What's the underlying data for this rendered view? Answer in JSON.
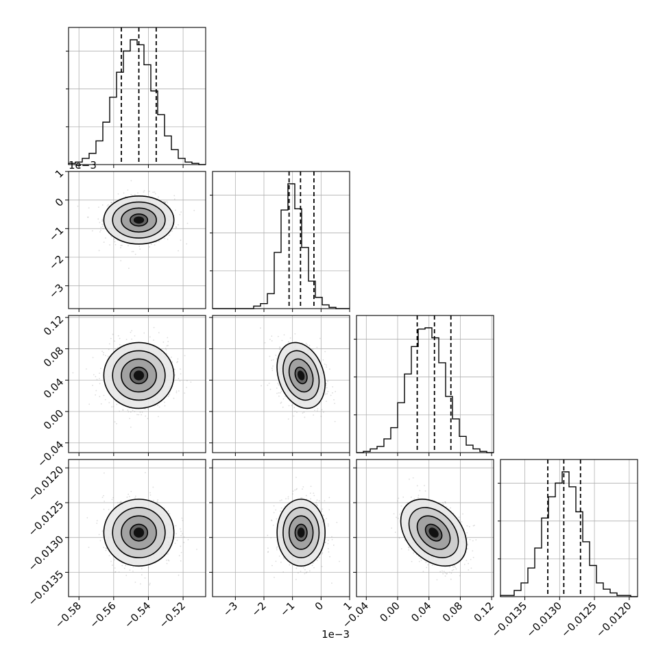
{
  "chart_data": {
    "type": "corner",
    "grid": true,
    "params": [
      {
        "name": "",
        "range": [
          -0.586,
          -0.507
        ],
        "ticks": [
          -0.58,
          -0.56,
          -0.54,
          -0.52
        ],
        "tick_labels": [
          "−0.58",
          "−0.56",
          "−0.54",
          "−0.52"
        ],
        "offset_label": "",
        "quantiles": [
          -0.5556,
          -0.5455,
          -0.5355
        ],
        "median": -0.5455,
        "std": 0.0101,
        "hist": [
          0.01,
          0.02,
          0.05,
          0.09,
          0.19,
          0.34,
          0.54,
          0.74,
          0.91,
          1.0,
          0.96,
          0.8,
          0.59,
          0.4,
          0.23,
          0.12,
          0.05,
          0.02,
          0.01,
          0.0
        ]
      },
      {
        "name": "",
        "range": [
          -0.0038,
          0.001
        ],
        "ticks": [
          -0.003,
          -0.002,
          -0.001,
          0.0,
          0.001
        ],
        "tick_labels": [
          "−3",
          "−2",
          "−1",
          "0",
          "1"
        ],
        "offset_label": "1e−3",
        "quantiles": [
          -0.00112,
          -0.00072,
          -0.00025
        ],
        "median": -0.0007,
        "std": 0.00042,
        "hist": [
          0.0,
          0.0,
          0.0,
          0.0,
          0.0,
          0.0,
          0.02,
          0.04,
          0.12,
          0.45,
          0.79,
          1.0,
          0.8,
          0.49,
          0.22,
          0.09,
          0.03,
          0.01,
          0.0,
          0.0
        ]
      },
      {
        "name": "",
        "range": [
          -0.0525,
          0.1225
        ],
        "ticks": [
          -0.04,
          0.0,
          0.04,
          0.08,
          0.12
        ],
        "tick_labels": [
          "−0.04",
          "0.00",
          "0.04",
          "0.08",
          "0.12"
        ],
        "offset_label": "",
        "quantiles": [
          0.025,
          0.047,
          0.068
        ],
        "median": 0.046,
        "std": 0.021,
        "hist": [
          0.0,
          0.01,
          0.03,
          0.05,
          0.11,
          0.2,
          0.4,
          0.63,
          0.85,
          0.99,
          1.0,
          0.92,
          0.72,
          0.45,
          0.27,
          0.13,
          0.06,
          0.03,
          0.01,
          0.0
        ]
      },
      {
        "name": "",
        "range": [
          -0.01385,
          -0.01188
        ],
        "ticks": [
          -0.0135,
          -0.013,
          -0.0125,
          -0.012
        ],
        "tick_labels": [
          "−0.0135",
          "−0.0130",
          "−0.0125",
          "−0.0120"
        ],
        "offset_label": "",
        "quantiles": [
          -0.01317,
          -0.01294,
          -0.0127
        ],
        "median": -0.01293,
        "std": 0.00024,
        "hist": [
          0.01,
          0.01,
          0.05,
          0.11,
          0.23,
          0.39,
          0.63,
          0.8,
          0.91,
          1.0,
          0.88,
          0.68,
          0.44,
          0.25,
          0.11,
          0.06,
          0.03,
          0.01,
          0.01,
          0.0
        ]
      }
    ],
    "correlations": [
      {
        "pair": [
          1,
          0
        ],
        "rho": 0.0
      },
      {
        "pair": [
          2,
          0
        ],
        "rho": 0.0
      },
      {
        "pair": [
          2,
          1
        ],
        "rho": -0.25
      },
      {
        "pair": [
          3,
          0
        ],
        "rho": 0.0
      },
      {
        "pair": [
          3,
          1
        ],
        "rho": 0.0
      },
      {
        "pair": [
          3,
          2
        ],
        "rho": -0.35
      }
    ],
    "contour_levels": [
      0.5,
      1.0,
      1.5,
      2.0
    ],
    "colors": {
      "line": "#000000",
      "grid": "#b0b0b0",
      "points": "#999999"
    }
  }
}
